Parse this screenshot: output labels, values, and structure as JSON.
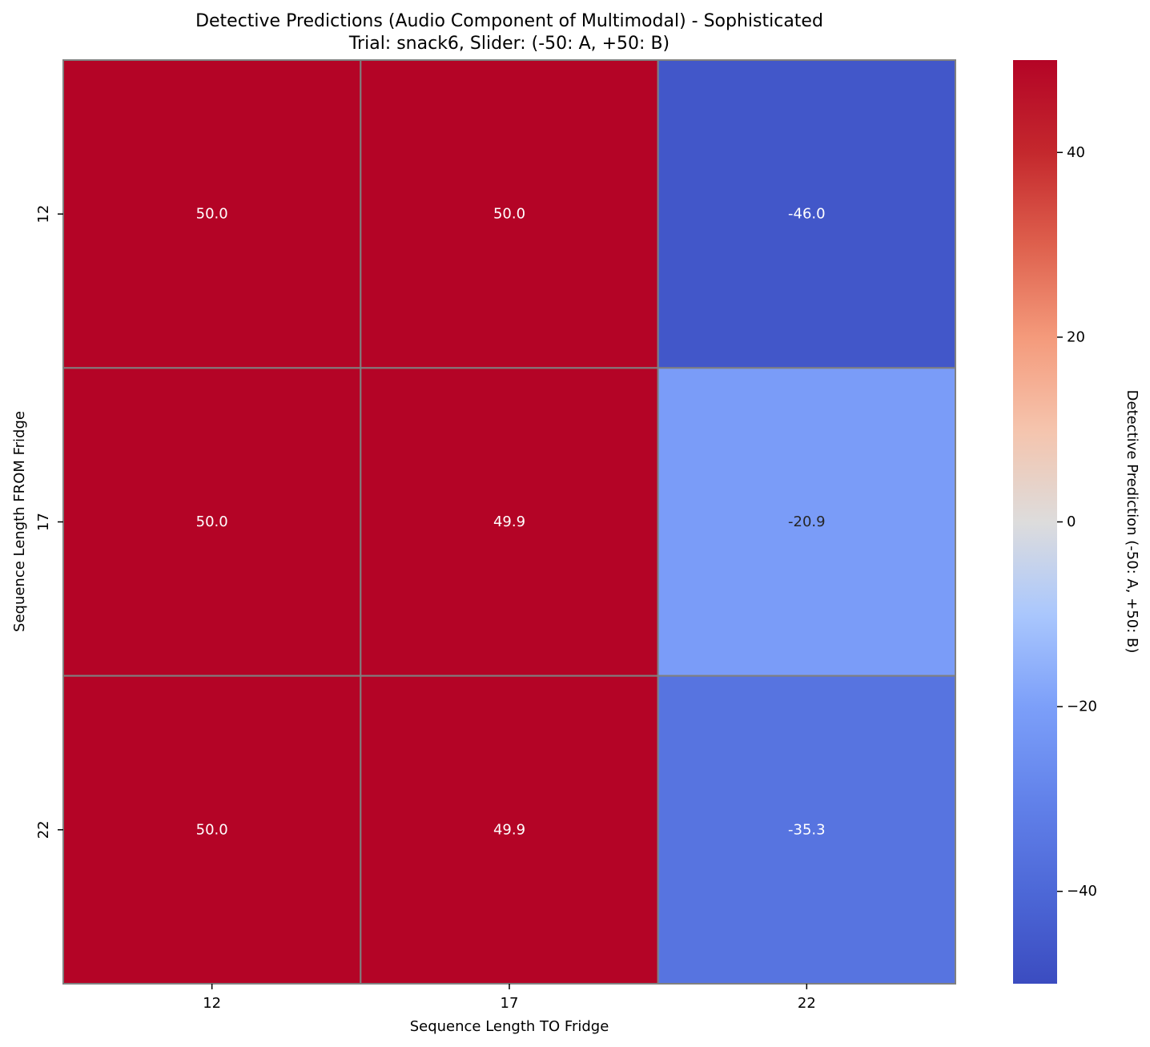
{
  "chart_data": {
    "type": "heatmap",
    "title": "Detective Predictions (Audio Component of Multimodal) - Sophisticated",
    "subtitle": "Trial: snack6, Slider: (-50: A, +50: B)",
    "xlabel": "Sequence Length TO Fridge",
    "ylabel": "Sequence Length FROM Fridge",
    "x_categories": [
      "12",
      "17",
      "22"
    ],
    "y_categories": [
      "12",
      "17",
      "22"
    ],
    "values": [
      [
        50.0,
        50.0,
        -46.0
      ],
      [
        50.0,
        49.9,
        -20.9
      ],
      [
        50.0,
        49.9,
        -35.3
      ]
    ],
    "value_labels": [
      [
        "50.0",
        "50.0",
        "-46.0"
      ],
      [
        "50.0",
        "49.9",
        "-20.9"
      ],
      [
        "50.0",
        "49.9",
        "-35.3"
      ]
    ],
    "colorbar": {
      "label": "Detective Prediction (-50: A, +50: B)",
      "range": [
        -50,
        50
      ],
      "ticks": [
        40,
        20,
        0,
        -20,
        -40
      ],
      "tick_labels": [
        "40",
        "20",
        "0",
        "−20",
        "−40"
      ],
      "colormap": "coolwarm"
    },
    "grid_color": "#808080"
  }
}
